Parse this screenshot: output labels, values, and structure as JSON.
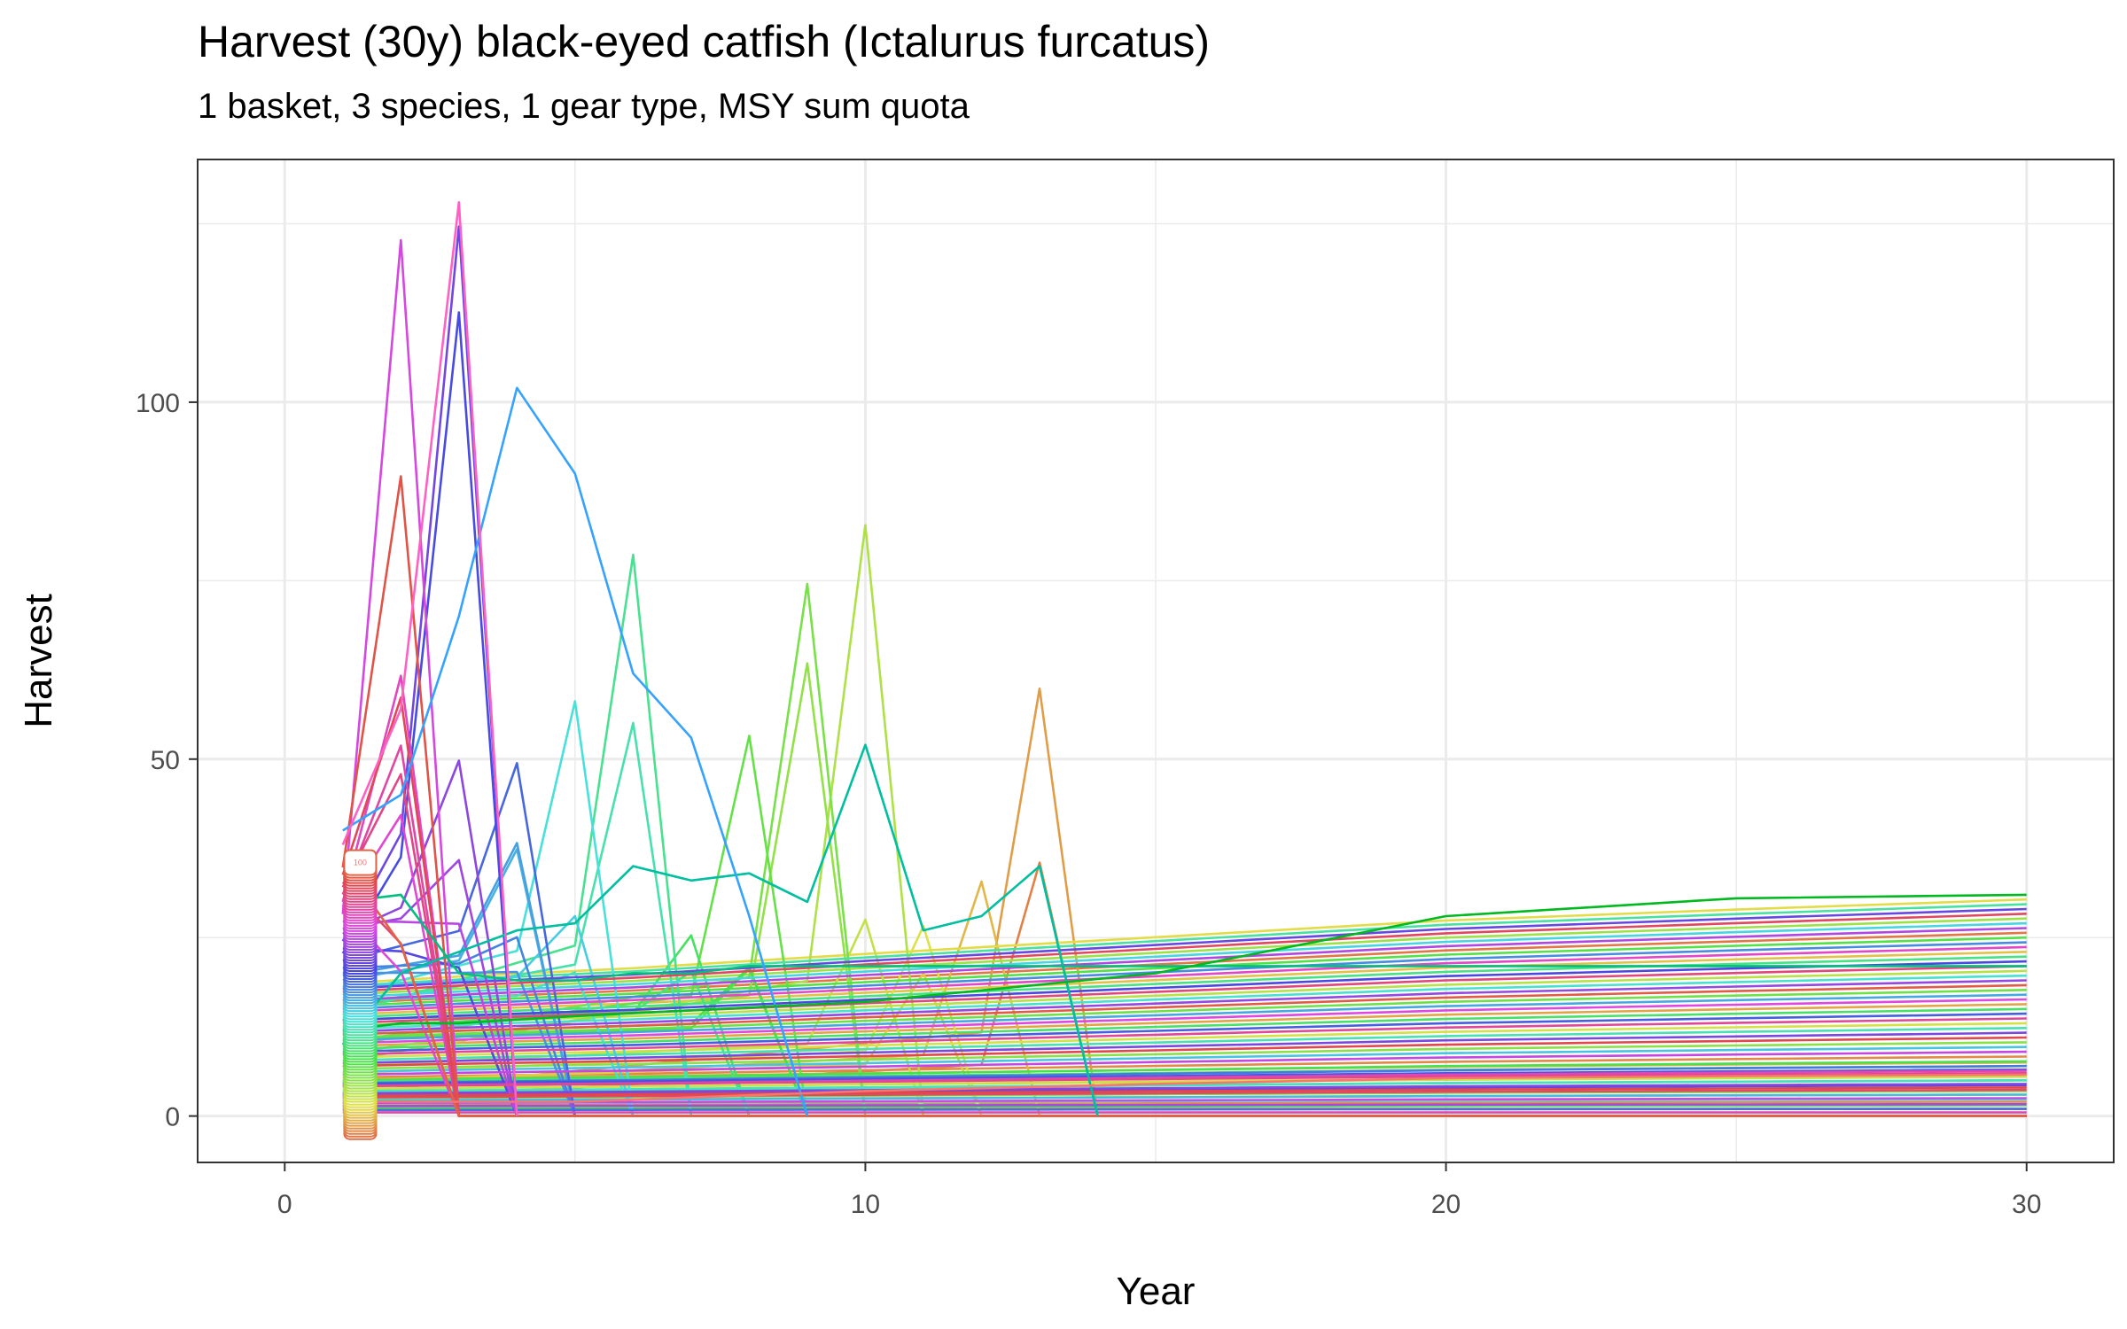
{
  "chart_data": {
    "type": "line",
    "title": "Harvest (30y) black-eyed catfish (Ictalurus furcatus)",
    "subtitle": "1 basket, 3 species, 1 gear type, MSY sum quota",
    "xlabel": "Year",
    "ylabel": "Harvest",
    "xlim": [
      -1.5,
      31.5
    ],
    "ylim": [
      -6.5,
      134
    ],
    "x_ticks": [
      0,
      10,
      20,
      30
    ],
    "y_ticks": [
      0,
      50,
      100
    ],
    "grid": true,
    "legend": "none",
    "series_count": 100,
    "series_color_scale": "hue",
    "series_label": "100",
    "series_representative": [
      {
        "x": [
          1,
          2,
          3,
          4,
          5,
          6,
          7,
          8,
          9,
          10,
          11,
          12,
          13,
          14
        ],
        "y": [
          10,
          20,
          23,
          26,
          27,
          35,
          33,
          34,
          30,
          52,
          26,
          28,
          35,
          0
        ]
      },
      {
        "x": [
          1,
          2,
          3,
          4,
          5,
          6,
          7,
          8,
          9,
          10,
          15,
          20,
          25,
          30
        ],
        "y": [
          30,
          31,
          20,
          19,
          19,
          20,
          20,
          21,
          21,
          21,
          21,
          21,
          21,
          21
        ]
      },
      {
        "x": [
          1,
          2,
          3,
          4,
          5,
          6,
          7,
          8,
          9
        ],
        "y": [
          40,
          45,
          70,
          102,
          90,
          62,
          53,
          28,
          0
        ]
      },
      {
        "x": [
          1,
          2,
          3,
          4
        ],
        "y": [
          38,
          57,
          128,
          0
        ]
      },
      {
        "x": [
          1,
          2,
          3,
          5,
          10,
          15,
          20,
          25,
          30
        ],
        "y": [
          12,
          13,
          13,
          14,
          16,
          20,
          28,
          30.5,
          31
        ]
      },
      {
        "x": [
          1,
          2,
          3,
          5,
          10,
          15,
          20,
          25,
          30
        ],
        "y": [
          2,
          2,
          2,
          2,
          3.5,
          4.5,
          5.3,
          5.6,
          5.8
        ]
      }
    ]
  },
  "colors": {
    "hue_start": "#F8766D",
    "hue_mid": "#00BFC4",
    "hue_end": "#FF61C3",
    "axis": "#333333",
    "grid": "#EBEBEB"
  }
}
